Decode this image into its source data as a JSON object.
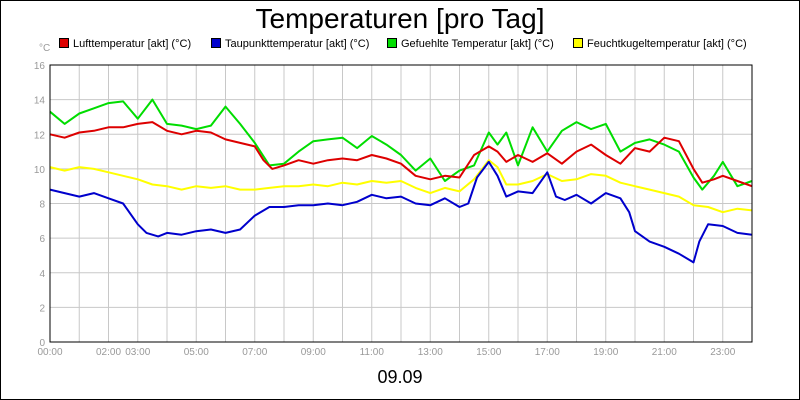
{
  "chart_data": {
    "type": "line",
    "title": "Temperaturen [pro Tag]",
    "ylabel": "°C",
    "xlabel": "09.09",
    "ylim": [
      0,
      16
    ],
    "xlim": [
      0,
      24
    ],
    "grid": true,
    "legend_position": "top",
    "y_ticks": [
      "0",
      "2",
      "4",
      "6",
      "8",
      "10",
      "12",
      "14",
      "16"
    ],
    "x_ticks": [
      {
        "label": "00:00",
        "x": 0
      },
      {
        "label": "02:00",
        "x": 2
      },
      {
        "label": "03:00",
        "x": 3
      },
      {
        "label": "05:00",
        "x": 5
      },
      {
        "label": "07:00",
        "x": 7
      },
      {
        "label": "09:00",
        "x": 9
      },
      {
        "label": "11:00",
        "x": 11
      },
      {
        "label": "13:00",
        "x": 13
      },
      {
        "label": "15:00",
        "x": 15
      },
      {
        "label": "17:00",
        "x": 17
      },
      {
        "label": "19:00",
        "x": 19
      },
      {
        "label": "21:00",
        "x": 21
      },
      {
        "label": "23:00",
        "x": 23
      }
    ],
    "series": [
      {
        "name": "Lufttemperatur [akt] (°C)",
        "color": "#dd0000",
        "points": [
          [
            0,
            12.0
          ],
          [
            0.5,
            11.8
          ],
          [
            1,
            12.1
          ],
          [
            1.5,
            12.2
          ],
          [
            2,
            12.4
          ],
          [
            2.5,
            12.4
          ],
          [
            3,
            12.6
          ],
          [
            3.5,
            12.7
          ],
          [
            4,
            12.2
          ],
          [
            4.5,
            12.0
          ],
          [
            5,
            12.2
          ],
          [
            5.5,
            12.1
          ],
          [
            6,
            11.7
          ],
          [
            6.5,
            11.5
          ],
          [
            7,
            11.3
          ],
          [
            7.3,
            10.5
          ],
          [
            7.6,
            10.0
          ],
          [
            8,
            10.2
          ],
          [
            8.5,
            10.5
          ],
          [
            9,
            10.3
          ],
          [
            9.5,
            10.5
          ],
          [
            10,
            10.6
          ],
          [
            10.5,
            10.5
          ],
          [
            11,
            10.8
          ],
          [
            11.5,
            10.6
          ],
          [
            12,
            10.3
          ],
          [
            12.5,
            9.6
          ],
          [
            13,
            9.4
          ],
          [
            13.5,
            9.6
          ],
          [
            14,
            9.5
          ],
          [
            14.5,
            10.8
          ],
          [
            15,
            11.3
          ],
          [
            15.3,
            11.0
          ],
          [
            15.6,
            10.4
          ],
          [
            16,
            10.8
          ],
          [
            16.5,
            10.4
          ],
          [
            17,
            10.9
          ],
          [
            17.5,
            10.3
          ],
          [
            18,
            11.0
          ],
          [
            18.5,
            11.4
          ],
          [
            19,
            10.8
          ],
          [
            19.5,
            10.3
          ],
          [
            20,
            11.2
          ],
          [
            20.5,
            11.0
          ],
          [
            21,
            11.8
          ],
          [
            21.5,
            11.6
          ],
          [
            22,
            10.0
          ],
          [
            22.3,
            9.2
          ],
          [
            22.7,
            9.4
          ],
          [
            23,
            9.6
          ],
          [
            23.5,
            9.3
          ],
          [
            24,
            9.0
          ]
        ]
      },
      {
        "name": "Taupunkttemperatur [akt] (°C)",
        "color": "#0000cc",
        "points": [
          [
            0,
            8.8
          ],
          [
            0.5,
            8.6
          ],
          [
            1,
            8.4
          ],
          [
            1.5,
            8.6
          ],
          [
            2,
            8.3
          ],
          [
            2.5,
            8.0
          ],
          [
            3,
            6.8
          ],
          [
            3.3,
            6.3
          ],
          [
            3.7,
            6.1
          ],
          [
            4,
            6.3
          ],
          [
            4.5,
            6.2
          ],
          [
            5,
            6.4
          ],
          [
            5.5,
            6.5
          ],
          [
            6,
            6.3
          ],
          [
            6.5,
            6.5
          ],
          [
            7,
            7.3
          ],
          [
            7.5,
            7.8
          ],
          [
            8,
            7.8
          ],
          [
            8.5,
            7.9
          ],
          [
            9,
            7.9
          ],
          [
            9.5,
            8.0
          ],
          [
            10,
            7.9
          ],
          [
            10.5,
            8.1
          ],
          [
            11,
            8.5
          ],
          [
            11.5,
            8.3
          ],
          [
            12,
            8.4
          ],
          [
            12.5,
            8.0
          ],
          [
            13,
            7.9
          ],
          [
            13.5,
            8.3
          ],
          [
            14,
            7.8
          ],
          [
            14.3,
            8.0
          ],
          [
            14.6,
            9.5
          ],
          [
            15,
            10.4
          ],
          [
            15.3,
            9.6
          ],
          [
            15.6,
            8.4
          ],
          [
            16,
            8.7
          ],
          [
            16.5,
            8.6
          ],
          [
            17,
            9.8
          ],
          [
            17.3,
            8.4
          ],
          [
            17.6,
            8.2
          ],
          [
            18,
            8.5
          ],
          [
            18.5,
            8.0
          ],
          [
            19,
            8.6
          ],
          [
            19.5,
            8.3
          ],
          [
            19.8,
            7.5
          ],
          [
            20,
            6.4
          ],
          [
            20.5,
            5.8
          ],
          [
            21,
            5.5
          ],
          [
            21.5,
            5.1
          ],
          [
            22,
            4.6
          ],
          [
            22.2,
            5.8
          ],
          [
            22.5,
            6.8
          ],
          [
            23,
            6.7
          ],
          [
            23.5,
            6.3
          ],
          [
            24,
            6.2
          ]
        ]
      },
      {
        "name": "Gefuehlte Temperatur [akt] (°C)",
        "color": "#00dd00",
        "points": [
          [
            0,
            13.3
          ],
          [
            0.5,
            12.6
          ],
          [
            1,
            13.2
          ],
          [
            1.5,
            13.5
          ],
          [
            2,
            13.8
          ],
          [
            2.5,
            13.9
          ],
          [
            3,
            12.9
          ],
          [
            3.5,
            14.0
          ],
          [
            4,
            12.6
          ],
          [
            4.5,
            12.5
          ],
          [
            5,
            12.3
          ],
          [
            5.5,
            12.5
          ],
          [
            6,
            13.6
          ],
          [
            6.5,
            12.6
          ],
          [
            7,
            11.5
          ],
          [
            7.5,
            10.2
          ],
          [
            8,
            10.3
          ],
          [
            8.5,
            11.0
          ],
          [
            9,
            11.6
          ],
          [
            9.5,
            11.7
          ],
          [
            10,
            11.8
          ],
          [
            10.5,
            11.2
          ],
          [
            11,
            11.9
          ],
          [
            11.5,
            11.4
          ],
          [
            12,
            10.8
          ],
          [
            12.5,
            9.9
          ],
          [
            13,
            10.6
          ],
          [
            13.5,
            9.3
          ],
          [
            14,
            9.9
          ],
          [
            14.5,
            10.2
          ],
          [
            15,
            12.1
          ],
          [
            15.3,
            11.4
          ],
          [
            15.6,
            12.1
          ],
          [
            16,
            10.2
          ],
          [
            16.5,
            12.4
          ],
          [
            17,
            11.0
          ],
          [
            17.5,
            12.2
          ],
          [
            18,
            12.7
          ],
          [
            18.5,
            12.3
          ],
          [
            19,
            12.6
          ],
          [
            19.5,
            11.0
          ],
          [
            20,
            11.5
          ],
          [
            20.5,
            11.7
          ],
          [
            21,
            11.4
          ],
          [
            21.5,
            11.0
          ],
          [
            22,
            9.5
          ],
          [
            22.3,
            8.8
          ],
          [
            22.7,
            9.6
          ],
          [
            23,
            10.4
          ],
          [
            23.5,
            9.0
          ],
          [
            24,
            9.3
          ]
        ]
      },
      {
        "name": "Feuchtkugeltemperatur [akt] (°C)",
        "color": "#ffff00",
        "points": [
          [
            0,
            10.1
          ],
          [
            0.5,
            9.9
          ],
          [
            1,
            10.1
          ],
          [
            1.5,
            10.0
          ],
          [
            2,
            9.8
          ],
          [
            2.5,
            9.6
          ],
          [
            3,
            9.4
          ],
          [
            3.5,
            9.1
          ],
          [
            4,
            9.0
          ],
          [
            4.5,
            8.8
          ],
          [
            5,
            9.0
          ],
          [
            5.5,
            8.9
          ],
          [
            6,
            9.0
          ],
          [
            6.5,
            8.8
          ],
          [
            7,
            8.8
          ],
          [
            7.5,
            8.9
          ],
          [
            8,
            9.0
          ],
          [
            8.5,
            9.0
          ],
          [
            9,
            9.1
          ],
          [
            9.5,
            9.0
          ],
          [
            10,
            9.2
          ],
          [
            10.5,
            9.1
          ],
          [
            11,
            9.3
          ],
          [
            11.5,
            9.2
          ],
          [
            12,
            9.3
          ],
          [
            12.5,
            8.9
          ],
          [
            13,
            8.6
          ],
          [
            13.5,
            8.9
          ],
          [
            14,
            8.7
          ],
          [
            14.5,
            9.4
          ],
          [
            15,
            10.5
          ],
          [
            15.3,
            10.1
          ],
          [
            15.6,
            9.1
          ],
          [
            16,
            9.1
          ],
          [
            16.5,
            9.3
          ],
          [
            17,
            9.7
          ],
          [
            17.5,
            9.3
          ],
          [
            18,
            9.4
          ],
          [
            18.5,
            9.7
          ],
          [
            19,
            9.6
          ],
          [
            19.5,
            9.2
          ],
          [
            20,
            9.0
          ],
          [
            20.5,
            8.8
          ],
          [
            21,
            8.6
          ],
          [
            21.5,
            8.4
          ],
          [
            22,
            7.9
          ],
          [
            22.5,
            7.8
          ],
          [
            23,
            7.5
          ],
          [
            23.5,
            7.7
          ],
          [
            24,
            7.6
          ]
        ]
      }
    ]
  }
}
